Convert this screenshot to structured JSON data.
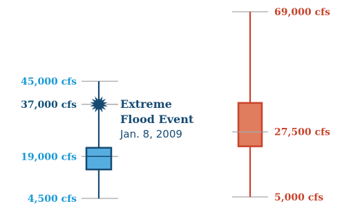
{
  "colors": {
    "left_label": "#1a9ad6",
    "left_label_dark": "#0f4f7a",
    "left_line": "#164a73",
    "left_box_fill": "#56aee0",
    "right_label": "#c8432b",
    "right_line": "#c8432b",
    "right_box_fill": "#e07d5f",
    "ref_line": "#a8a8a8"
  },
  "chart_data": {
    "type": "box",
    "y_unit": "cfs",
    "ylim": [
      4500,
      69000
    ],
    "series": [
      {
        "labels": {
          "max": "45,000 cfs",
          "outlier": "37,000 cfs",
          "median": "19,000 cfs",
          "min": "4,500 cfs"
        },
        "min": 4500,
        "q1": 14500,
        "median": 19000,
        "q3": 22000,
        "max": 45000,
        "outlier": 37000
      },
      {
        "labels": {
          "max": "69,000 cfs",
          "median": "27,500 cfs",
          "min": "5,000 cfs"
        },
        "min": 5000,
        "q1": 22500,
        "median": 27500,
        "q3": 37500,
        "max": 69000
      }
    ],
    "annotation": {
      "title_line1": "Extreme",
      "title_line2": "Flood Event",
      "date": "Jan. 8, 2009"
    }
  }
}
